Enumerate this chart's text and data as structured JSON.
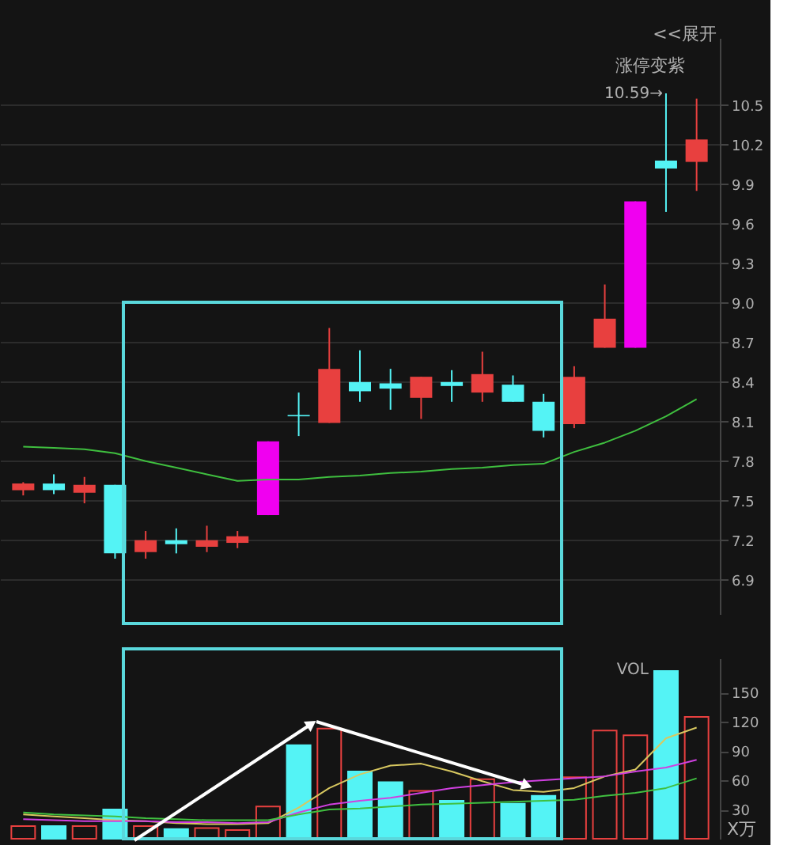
{
  "chart_data": [
    {
      "type": "candlestick",
      "categories": [
        null,
        null,
        null,
        null,
        null,
        null,
        null,
        null,
        null,
        null,
        null,
        null,
        null,
        null,
        null,
        null,
        null,
        null,
        null,
        null,
        null,
        null,
        null
      ],
      "ohlc": [
        [
          7.58,
          7.64,
          7.54,
          7.63
        ],
        [
          7.63,
          7.7,
          7.55,
          7.58
        ],
        [
          7.56,
          7.68,
          7.48,
          7.62
        ],
        [
          7.62,
          7.62,
          7.06,
          7.1
        ],
        [
          7.11,
          7.27,
          7.06,
          7.2
        ],
        [
          7.2,
          7.29,
          7.1,
          7.17
        ],
        [
          7.15,
          7.31,
          7.11,
          7.2
        ],
        [
          7.18,
          7.27,
          7.14,
          7.23
        ],
        [
          7.39,
          7.95,
          7.39,
          7.95
        ],
        [
          8.15,
          8.32,
          7.99,
          8.14
        ],
        [
          8.09,
          8.81,
          8.09,
          8.5
        ],
        [
          8.4,
          8.64,
          8.25,
          8.33
        ],
        [
          8.39,
          8.5,
          8.19,
          8.35
        ],
        [
          8.28,
          8.44,
          8.12,
          8.44
        ],
        [
          8.4,
          8.49,
          8.25,
          8.37
        ],
        [
          8.32,
          8.63,
          8.25,
          8.46
        ],
        [
          8.38,
          8.45,
          8.25,
          8.25
        ],
        [
          8.25,
          8.31,
          7.98,
          8.03
        ],
        [
          8.08,
          8.52,
          8.05,
          8.44
        ],
        [
          8.66,
          9.14,
          8.66,
          8.88
        ],
        [
          8.66,
          9.77,
          8.66,
          9.77
        ],
        [
          10.08,
          10.59,
          9.69,
          10.02
        ],
        [
          10.07,
          10.55,
          9.85,
          10.24
        ]
      ],
      "colors": [
        "#e8403f",
        "#54f3f5",
        "#e8403f",
        "#54f3f5",
        "#e8403f",
        "#54f3f5",
        "#e8403f",
        "#e8403f",
        "#f000f0",
        "#54f3f5",
        "#e8403f",
        "#54f3f5",
        "#54f3f5",
        "#e8403f",
        "#54f3f5",
        "#e8403f",
        "#54f3f5",
        "#54f3f5",
        "#e8403f",
        "#e8403f",
        "#f000f0",
        "#54f3f5",
        "#e8403f"
      ],
      "series": [
        {
          "type": "line",
          "color": "#3fbf3f",
          "values": [
            7.91,
            7.9,
            7.89,
            7.86,
            7.8,
            7.75,
            7.7,
            7.65,
            7.66,
            7.66,
            7.68,
            7.69,
            7.71,
            7.72,
            7.74,
            7.75,
            7.77,
            7.78,
            7.87,
            7.94,
            8.03,
            8.14,
            8.27
          ]
        }
      ],
      "ylim": [
        6.64,
        11.01
      ],
      "yticks": [
        6.9,
        7.2,
        7.5,
        7.8,
        8.1,
        8.4,
        8.7,
        {
          "value": 9.0,
          "label": "9.0"
        },
        9.3,
        9.6,
        9.9,
        10.2,
        10.5
      ],
      "grid": "y",
      "tick_labels": "y",
      "annotations": [
        "<<展开",
        "涨停变紫",
        "10.59→"
      ]
    },
    {
      "type": "bar",
      "title": "VOL",
      "ylabel": "X万",
      "categories": [
        null,
        null,
        null,
        null,
        null,
        null,
        null,
        null,
        null,
        null,
        null,
        null,
        null,
        null,
        null,
        null,
        null,
        null,
        null,
        null,
        null,
        null,
        null
      ],
      "values": [
        13,
        13,
        13,
        30,
        13,
        10,
        11,
        9,
        33,
        96,
        113,
        69,
        58,
        49,
        39,
        61,
        36,
        44,
        63,
        111,
        106,
        172,
        125
      ],
      "colors": [
        "#e8403f",
        "#54f3f5",
        "#e8403f",
        "#54f3f5",
        "#e8403f",
        "#54f3f5",
        "#e8403f",
        "#e8403f",
        "#e8403f",
        "#54f3f5",
        "#e8403f",
        "#54f3f5",
        "#54f3f5",
        "#e8403f",
        "#54f3f5",
        "#e8403f",
        "#54f3f5",
        "#54f3f5",
        "#e8403f",
        "#e8403f",
        "#e8403f",
        "#54f3f5",
        "#e8403f"
      ],
      "series": [
        {
          "type": "line",
          "color": "#d8c860",
          "values": [
            25,
            23,
            21,
            19,
            18,
            16,
            15,
            15,
            16,
            32,
            52,
            66,
            75,
            77,
            69,
            59,
            50,
            48,
            52,
            64,
            71,
            103,
            114
          ]
        },
        {
          "type": "line",
          "color": "#d040e0",
          "values": [
            20,
            19,
            18,
            18,
            18,
            17,
            17,
            16,
            17,
            27,
            35,
            39,
            42,
            47,
            52,
            55,
            58,
            60,
            62,
            64,
            69,
            73,
            81
          ]
        },
        {
          "type": "line",
          "color": "#40c040",
          "values": [
            27,
            25,
            24,
            23,
            21,
            20,
            19,
            19,
            19,
            25,
            30,
            31,
            33,
            35,
            36,
            37,
            38,
            39,
            40,
            44,
            47,
            52,
            62
          ]
        }
      ],
      "ylim": [
        0,
        185
      ],
      "yticks": [
        30,
        60,
        90,
        120,
        150
      ],
      "grid": false,
      "tick_labels": "y"
    }
  ]
}
